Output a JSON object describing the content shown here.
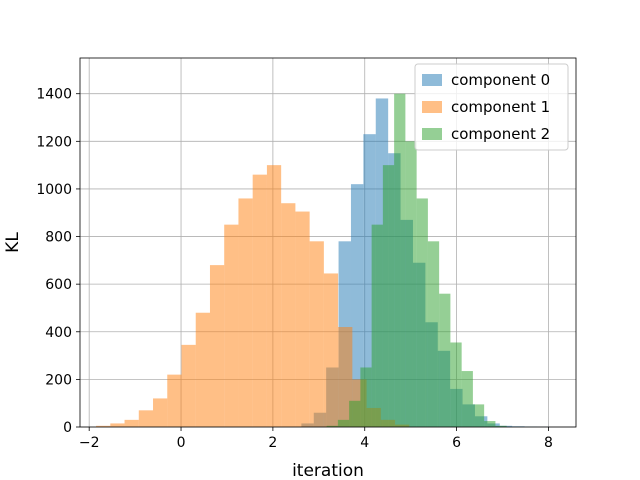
{
  "chart_data": {
    "type": "histogram",
    "title": "",
    "xlabel": "iteration",
    "ylabel": "KL",
    "xlim": [
      -2.2,
      8.6
    ],
    "ylim": [
      0,
      1550
    ],
    "xticks": [
      -2,
      0,
      2,
      4,
      6,
      8
    ],
    "yticks": [
      0,
      200,
      400,
      600,
      800,
      1000,
      1200,
      1400
    ],
    "grid": true,
    "legend_position": "top-right",
    "series": [
      {
        "name": "component 0",
        "color": "#1f77b4",
        "alpha": 0.5,
        "bin_width": 0.27,
        "bins": [
          [
            2.62,
            15
          ],
          [
            2.89,
            60
          ],
          [
            3.16,
            250
          ],
          [
            3.43,
            780
          ],
          [
            3.7,
            1020
          ],
          [
            3.97,
            1230
          ],
          [
            4.24,
            1380
          ],
          [
            4.51,
            1150
          ],
          [
            4.78,
            870
          ],
          [
            5.05,
            690
          ],
          [
            5.32,
            440
          ],
          [
            5.59,
            320
          ],
          [
            5.86,
            160
          ],
          [
            6.13,
            95
          ],
          [
            6.4,
            45
          ],
          [
            6.67,
            15
          ],
          [
            6.94,
            5
          ],
          [
            7.21,
            3
          ],
          [
            7.48,
            2
          ],
          [
            7.75,
            1
          ]
        ]
      },
      {
        "name": "component 1",
        "color": "#ff7f0e",
        "alpha": 0.5,
        "bin_width": 0.31,
        "bins": [
          [
            -1.85,
            5
          ],
          [
            -1.54,
            15
          ],
          [
            -1.23,
            30
          ],
          [
            -0.92,
            70
          ],
          [
            -0.61,
            120
          ],
          [
            -0.3,
            220
          ],
          [
            0.01,
            345
          ],
          [
            0.32,
            480
          ],
          [
            0.63,
            680
          ],
          [
            0.94,
            850
          ],
          [
            1.25,
            960
          ],
          [
            1.56,
            1060
          ],
          [
            1.87,
            1100
          ],
          [
            2.18,
            940
          ],
          [
            2.49,
            905
          ],
          [
            2.8,
            780
          ],
          [
            3.11,
            645
          ],
          [
            3.42,
            420
          ],
          [
            3.73,
            200
          ],
          [
            4.04,
            80
          ],
          [
            4.35,
            30
          ],
          [
            4.66,
            10
          ]
        ]
      },
      {
        "name": "component 2",
        "color": "#2ca02c",
        "alpha": 0.5,
        "bin_width": 0.245,
        "bins": [
          [
            3.17,
            5
          ],
          [
            3.415,
            30
          ],
          [
            3.66,
            110
          ],
          [
            3.905,
            250
          ],
          [
            4.15,
            850
          ],
          [
            4.395,
            1100
          ],
          [
            4.64,
            1400
          ],
          [
            4.885,
            1200
          ],
          [
            5.13,
            960
          ],
          [
            5.375,
            780
          ],
          [
            5.62,
            560
          ],
          [
            5.865,
            355
          ],
          [
            6.11,
            235
          ],
          [
            6.355,
            95
          ],
          [
            6.6,
            25
          ],
          [
            6.845,
            5
          ]
        ]
      }
    ]
  }
}
